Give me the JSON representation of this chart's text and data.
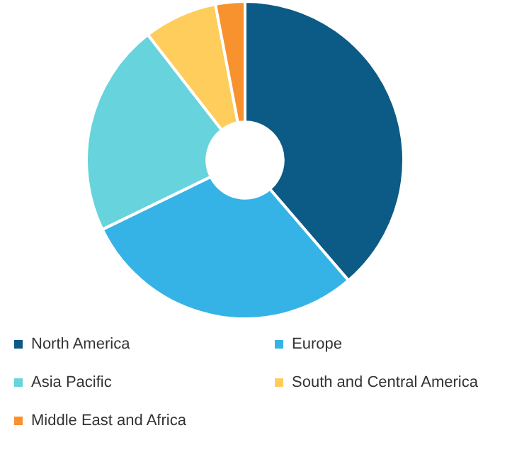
{
  "chart_data": {
    "type": "donut",
    "categories": [
      "North America",
      "Europe",
      "Asia Pacific",
      "South and Central America",
      "Middle East and Africa"
    ],
    "values": [
      38.7,
      29.1,
      21.7,
      7.5,
      3.0
    ],
    "colors": [
      "#0c5a86",
      "#36b3e6",
      "#67d3dc",
      "#ffcd5c",
      "#f7922e"
    ],
    "legend": "bottom"
  }
}
